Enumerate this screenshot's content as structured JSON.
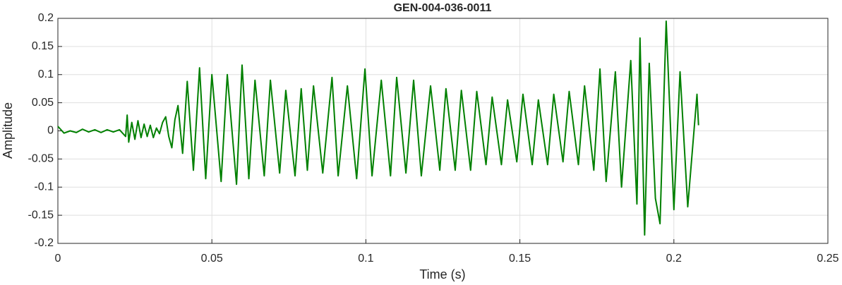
{
  "chart_data": {
    "type": "line",
    "title": "GEN-004-036-0011",
    "xlabel": "Time (s)",
    "ylabel": "Amplitude",
    "xlim": [
      0,
      0.25
    ],
    "xticks": [
      0,
      0.05,
      0.1,
      0.15,
      0.2,
      0.25
    ],
    "ylim": [
      -0.2,
      0.2
    ],
    "yticks": [
      -0.2,
      -0.15,
      -0.1,
      -0.05,
      0,
      0.05,
      0.1,
      0.15,
      0.2
    ],
    "grid": true,
    "series": [
      {
        "color": "#008000",
        "x": [
          0,
          0.002,
          0.004,
          0.006,
          0.008,
          0.01,
          0.012,
          0.014,
          0.016,
          0.018,
          0.02,
          0.022,
          0.0225,
          0.023,
          0.024,
          0.025,
          0.026,
          0.027,
          0.028,
          0.029,
          0.03,
          0.031,
          0.032,
          0.033,
          0.034,
          0.035,
          0.036,
          0.037,
          0.038,
          0.039,
          0.0405,
          0.042,
          0.044,
          0.046,
          0.048,
          0.05,
          0.053,
          0.055,
          0.058,
          0.0598,
          0.062,
          0.064,
          0.067,
          0.069,
          0.072,
          0.074,
          0.077,
          0.079,
          0.081,
          0.083,
          0.086,
          0.089,
          0.091,
          0.094,
          0.097,
          0.0997,
          0.102,
          0.105,
          0.108,
          0.11,
          0.113,
          0.1155,
          0.118,
          0.121,
          0.124,
          0.126,
          0.129,
          0.131,
          0.134,
          0.136,
          0.139,
          0.141,
          0.144,
          0.146,
          0.149,
          0.151,
          0.154,
          0.156,
          0.159,
          0.161,
          0.164,
          0.166,
          0.169,
          0.171,
          0.174,
          0.176,
          0.178,
          0.181,
          0.183,
          0.186,
          0.188,
          0.189,
          0.1905,
          0.192,
          0.194,
          0.1955,
          0.1975,
          0.2,
          0.202,
          0.2045,
          0.2075,
          0.208
        ],
        "values": [
          0.008,
          -0.004,
          0.0,
          -0.003,
          0.003,
          -0.002,
          0.002,
          -0.003,
          0.002,
          -0.002,
          0.002,
          -0.01,
          0.028,
          -0.02,
          0.015,
          -0.015,
          0.018,
          -0.012,
          0.012,
          -0.01,
          0.01,
          -0.012,
          0.005,
          -0.005,
          0.015,
          0.025,
          -0.01,
          -0.03,
          0.02,
          0.045,
          -0.04,
          0.088,
          -0.07,
          0.112,
          -0.085,
          0.1,
          -0.09,
          0.1,
          -0.095,
          0.117,
          -0.085,
          0.09,
          -0.08,
          0.09,
          -0.075,
          0.072,
          -0.08,
          0.075,
          -0.07,
          0.08,
          -0.075,
          0.095,
          -0.08,
          0.08,
          -0.085,
          0.11,
          -0.08,
          0.09,
          -0.08,
          0.095,
          -0.075,
          0.09,
          -0.08,
          0.08,
          -0.07,
          0.075,
          -0.07,
          0.072,
          -0.07,
          0.07,
          -0.06,
          0.06,
          -0.06,
          0.055,
          -0.055,
          0.065,
          -0.06,
          0.055,
          -0.06,
          0.065,
          -0.055,
          0.07,
          -0.06,
          0.08,
          -0.07,
          0.11,
          -0.09,
          0.105,
          -0.1,
          0.125,
          -0.13,
          0.165,
          -0.185,
          0.12,
          -0.12,
          -0.165,
          0.195,
          -0.14,
          0.105,
          -0.135,
          0.065,
          0.01
        ]
      }
    ]
  }
}
